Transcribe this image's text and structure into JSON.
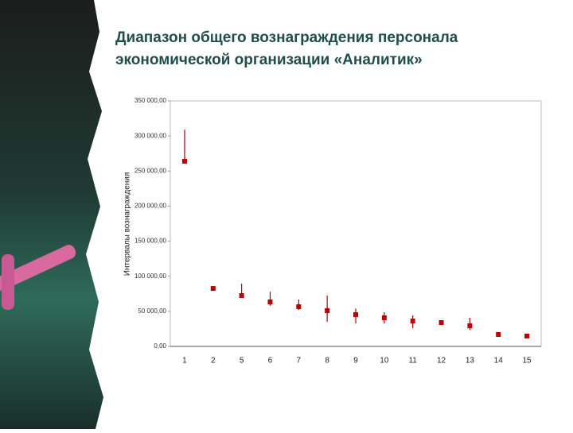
{
  "chart_data": {
    "type": "range",
    "title": [
      "Диапазон общего вознаграждения персонала",
      "экономической организации «Аналитик»"
    ],
    "y_label": "Интервалы вознаграждения",
    "categories": [
      "1",
      "2",
      "5",
      "6",
      "7",
      "8",
      "9",
      "10",
      "11",
      "12",
      "13",
      "14",
      "15"
    ],
    "high": [
      309000,
      null,
      89500,
      78000,
      66800,
      72500,
      54000,
      48700,
      44200,
      null,
      40800,
      null,
      null
    ],
    "low": [
      262000,
      null,
      72500,
      58000,
      52000,
      35000,
      32800,
      32800,
      26000,
      null,
      23800,
      null,
      null
    ],
    "values": [
      264000,
      82600,
      72500,
      63400,
      56600,
      51000,
      45300,
      40800,
      36200,
      34000,
      29400,
      17000,
      14700
    ],
    "color": "#c00000",
    "ylim": [
      0,
      350000
    ],
    "yticks": [
      {
        "value": 0,
        "label": "0,00"
      },
      {
        "value": 50000,
        "label": "50 000,00"
      },
      {
        "value": 100000,
        "label": "100 000,00"
      },
      {
        "value": 150000,
        "label": "150 000,00"
      },
      {
        "value": 200000,
        "label": "200 000,00"
      },
      {
        "value": 250000,
        "label": "250 000,00"
      },
      {
        "value": 300000,
        "label": "300 000,00"
      },
      {
        "value": 350000,
        "label": "350 000,00"
      }
    ]
  }
}
